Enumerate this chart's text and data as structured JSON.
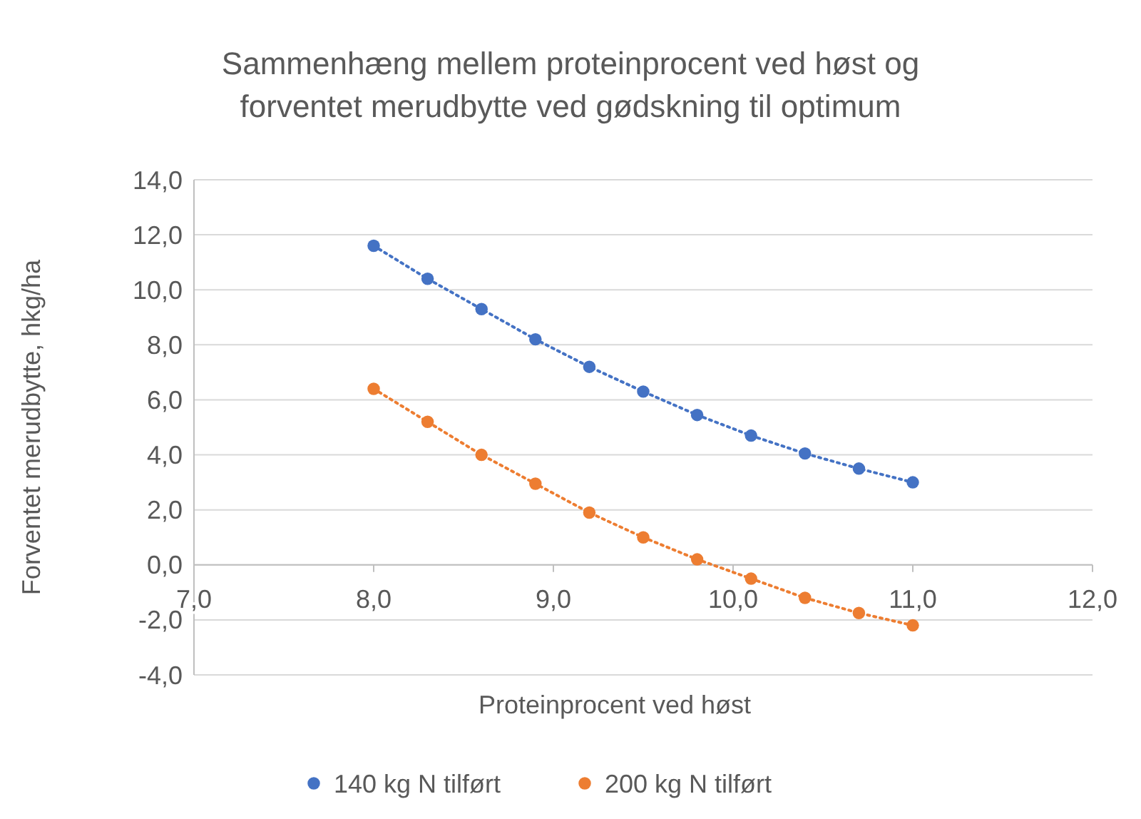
{
  "chart_data": {
    "type": "line",
    "title": "Sammenhæng mellem proteinprocent ved høst og forventet merudbytte ved gødskning til optimum",
    "xlabel": "Proteinprocent  ved høst",
    "ylabel": "Forventet merudbytte,  hkg/ha",
    "x": [
      8.0,
      8.3,
      8.6,
      8.9,
      9.2,
      9.5,
      9.8,
      10.1,
      10.4,
      10.7,
      11.0
    ],
    "series": [
      {
        "name": "140 kg N tilført",
        "color": "#4472c4",
        "values": [
          11.6,
          10.4,
          9.3,
          8.2,
          7.2,
          6.3,
          5.45,
          4.7,
          4.05,
          3.5,
          3.0
        ]
      },
      {
        "name": "200 kg N tilført",
        "color": "#ed7d31",
        "values": [
          6.4,
          5.2,
          4.0,
          2.95,
          1.9,
          1.0,
          0.2,
          -0.5,
          -1.2,
          -1.75,
          -2.2
        ]
      }
    ],
    "xlim": [
      7,
      12
    ],
    "xticks": [
      {
        "value": 7,
        "label": "7,0"
      },
      {
        "value": 8,
        "label": "8,0"
      },
      {
        "value": 9,
        "label": "9,0"
      },
      {
        "value": 10,
        "label": "10,0"
      },
      {
        "value": 11,
        "label": "11,0"
      },
      {
        "value": 12,
        "label": "12,0"
      }
    ],
    "ylim": [
      -4,
      14
    ],
    "yticks": [
      {
        "value": -4,
        "label": "-4,0"
      },
      {
        "value": -2,
        "label": "-2,0"
      },
      {
        "value": 0,
        "label": "0,0"
      },
      {
        "value": 2,
        "label": "2,0"
      },
      {
        "value": 4,
        "label": "4,0"
      },
      {
        "value": 6,
        "label": "6,0"
      },
      {
        "value": 8,
        "label": "8,0"
      },
      {
        "value": 10,
        "label": "10,0"
      },
      {
        "value": 12,
        "label": "12,0"
      },
      {
        "value": 14,
        "label": "14,0"
      }
    ],
    "grid": "y",
    "legend": "bottom",
    "marker": "circle",
    "line_style": "dotted"
  }
}
